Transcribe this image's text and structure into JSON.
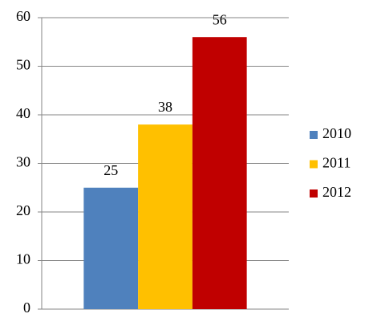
{
  "chart_data": {
    "type": "bar",
    "categories": [
      null
    ],
    "series": [
      {
        "name": "2010",
        "color": "#4f81bd",
        "values": [
          25
        ]
      },
      {
        "name": "2011",
        "color": "#ffc000",
        "values": [
          38
        ]
      },
      {
        "name": "2012",
        "color": "#c00000",
        "values": [
          56
        ]
      }
    ],
    "ylim": [
      0,
      60
    ],
    "yticks": [
      0,
      10,
      20,
      30,
      40,
      50,
      60
    ],
    "grid": true,
    "data_labels": true,
    "legend": "right"
  }
}
